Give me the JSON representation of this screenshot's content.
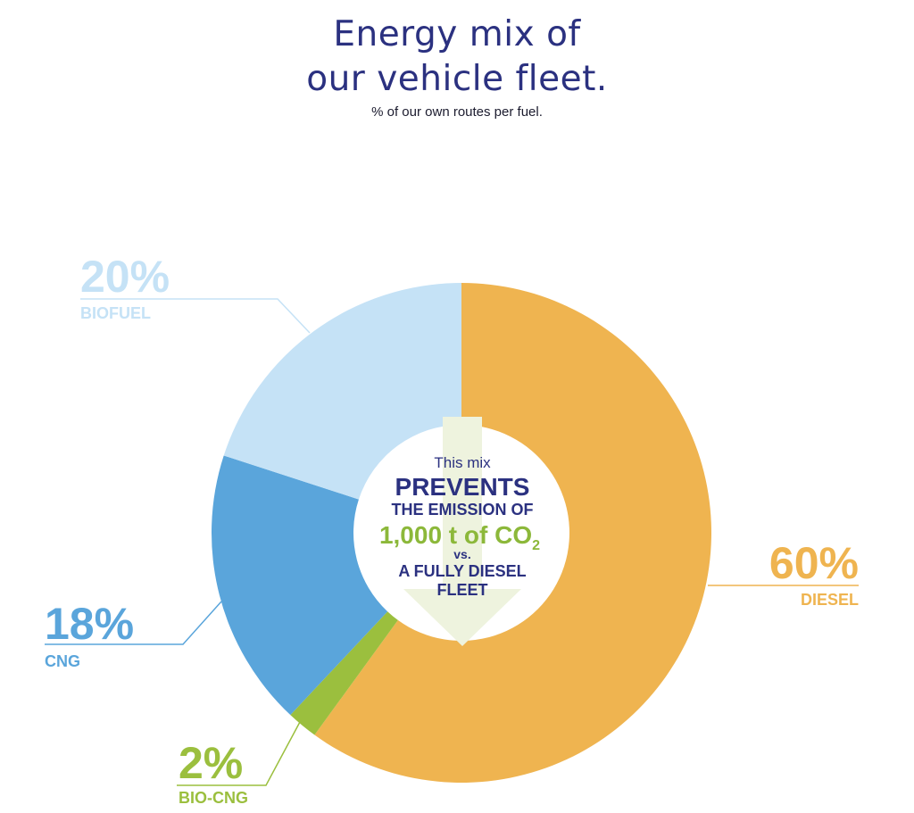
{
  "header": {
    "title_line1": "Energy mix of",
    "title_line2": "our vehicle fleet.",
    "subtitle": "% of our own routes per fuel."
  },
  "chart_data": {
    "type": "pie",
    "variant": "donut",
    "title": "Energy mix of our vehicle fleet.",
    "subtitle": "% of our own routes per fuel.",
    "unit": "%",
    "slices": [
      {
        "label": "DIESEL",
        "value": 60,
        "value_label": "60%",
        "color": "#efb450"
      },
      {
        "label": "BIO-CNG",
        "value": 2,
        "value_label": "2%",
        "color": "#9bbf3e"
      },
      {
        "label": "CNG",
        "value": 18,
        "value_label": "18%",
        "color": "#5aa5db"
      },
      {
        "label": "BIOFUEL",
        "value": 20,
        "value_label": "20%",
        "color": "#c5e2f6"
      }
    ],
    "start_angle_deg": 0,
    "direction": "clockwise",
    "center_annotation": {
      "line1": "This mix",
      "line2": "PREVENTS",
      "line3": "THE EMISSION OF",
      "line4": "1,000 t of CO",
      "line4_sub": "2",
      "line5": "vs.",
      "line6": "A FULLY DIESEL",
      "line7": "FLEET"
    },
    "center_colors": {
      "dark": "#2b3180",
      "green": "#8cb83a",
      "arrow": "#eef3de"
    }
  }
}
